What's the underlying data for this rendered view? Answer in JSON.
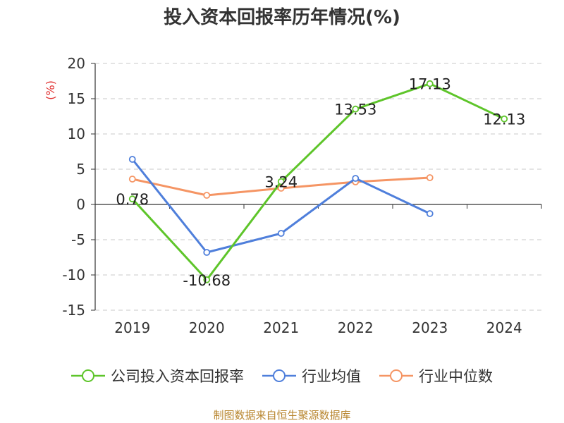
{
  "title": "投入资本回报率历年情况(%)",
  "source": "制图数据来自恒生聚源数据库",
  "chart_data": {
    "type": "line",
    "title": "投入资本回报率历年情况(%)",
    "ylabel": "(%)",
    "categories": [
      "2019",
      "2020",
      "2021",
      "2022",
      "2023",
      "2024"
    ],
    "ylim": [
      -15,
      20
    ],
    "yticks": [
      -15,
      -10,
      -5,
      0,
      5,
      10,
      15,
      20
    ],
    "ytick_labels": [
      "-15",
      "-10",
      "-5",
      "0",
      "5",
      "10",
      "15",
      "20"
    ],
    "grid": true,
    "legend_position": "bottom",
    "series": [
      {
        "name": "公司投入资本回报率",
        "color": "#5ec52a",
        "values": [
          0.78,
          -10.68,
          3.24,
          13.53,
          17.13,
          12.13
        ],
        "labels": [
          "0.78",
          "-10.68",
          "3.24",
          "13.53",
          "17.13",
          "12.13"
        ]
      },
      {
        "name": "行业均值",
        "color": "#4f7fdb",
        "values": [
          6.4,
          -6.8,
          -4.1,
          3.7,
          -1.3,
          null
        ]
      },
      {
        "name": "行业中位数",
        "color": "#f59564",
        "values": [
          3.6,
          1.3,
          2.3,
          3.2,
          3.8,
          null
        ]
      }
    ]
  }
}
